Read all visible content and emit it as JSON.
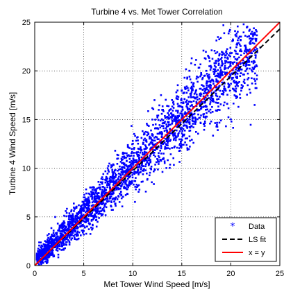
{
  "chart_data": {
    "type": "scatter",
    "title": "Turbine 4 vs. Met Tower Correlation",
    "xlabel": "Met Tower Wind Speed [m/s]",
    "ylabel": "Turbine 4 Wind Speed [m/s]",
    "xlim": [
      0,
      25
    ],
    "ylim": [
      0,
      25
    ],
    "xticks": [
      0,
      5,
      10,
      15,
      20,
      25
    ],
    "yticks": [
      0,
      5,
      10,
      15,
      20,
      25
    ],
    "grid": true,
    "grid_style": "dotted",
    "legend_position": "bottom-right",
    "series": [
      {
        "name": "Data",
        "kind": "scatter",
        "marker": "*",
        "color": "#0000ff",
        "sample_points": [
          [
            0.3,
            0.6
          ],
          [
            0.5,
            1.4
          ],
          [
            0.8,
            0.4
          ],
          [
            1.0,
            2.0
          ],
          [
            1.2,
            0.8
          ],
          [
            1.5,
            2.6
          ],
          [
            1.7,
            1.2
          ],
          [
            2.0,
            3.0
          ],
          [
            2.2,
            1.6
          ],
          [
            2.5,
            3.6
          ],
          [
            2.8,
            2.0
          ],
          [
            3.0,
            4.4
          ],
          [
            3.2,
            2.4
          ],
          [
            3.5,
            5.0
          ],
          [
            3.8,
            2.8
          ],
          [
            4.0,
            5.6
          ],
          [
            4.3,
            3.2
          ],
          [
            4.5,
            6.2
          ],
          [
            4.8,
            3.6
          ],
          [
            5.0,
            7.0
          ],
          [
            5.3,
            4.0
          ],
          [
            5.5,
            7.4
          ],
          [
            5.8,
            4.6
          ],
          [
            6.0,
            8.0
          ],
          [
            6.3,
            5.0
          ],
          [
            6.5,
            8.6
          ],
          [
            6.8,
            5.6
          ],
          [
            7.0,
            9.4
          ],
          [
            7.3,
            6.0
          ],
          [
            7.5,
            9.8
          ],
          [
            7.8,
            6.6
          ],
          [
            8.0,
            10.4
          ],
          [
            8.3,
            7.0
          ],
          [
            8.5,
            11.0
          ],
          [
            8.8,
            7.6
          ],
          [
            9.0,
            11.6
          ],
          [
            9.3,
            8.0
          ],
          [
            9.5,
            12.2
          ],
          [
            9.8,
            8.6
          ],
          [
            10.0,
            12.8
          ],
          [
            10.3,
            9.0
          ],
          [
            10.5,
            13.2
          ],
          [
            10.8,
            9.6
          ],
          [
            11.0,
            13.8
          ],
          [
            11.3,
            10.2
          ],
          [
            11.5,
            14.4
          ],
          [
            11.8,
            10.6
          ],
          [
            12.0,
            15.0
          ],
          [
            12.3,
            11.2
          ],
          [
            12.5,
            15.4
          ],
          [
            12.8,
            11.8
          ],
          [
            13.0,
            16.0
          ],
          [
            13.3,
            12.2
          ],
          [
            13.5,
            16.4
          ],
          [
            13.8,
            12.8
          ],
          [
            14.0,
            17.0
          ],
          [
            14.3,
            13.4
          ],
          [
            14.5,
            17.4
          ],
          [
            14.8,
            13.8
          ],
          [
            15.0,
            18.0
          ],
          [
            15.3,
            14.4
          ],
          [
            15.5,
            18.4
          ],
          [
            15.8,
            15.0
          ],
          [
            16.0,
            18.8
          ],
          [
            16.3,
            15.6
          ],
          [
            16.5,
            19.2
          ],
          [
            16.8,
            16.0
          ],
          [
            17.0,
            19.6
          ],
          [
            17.3,
            16.8
          ],
          [
            17.5,
            20.0
          ],
          [
            17.8,
            17.2
          ],
          [
            18.0,
            20.4
          ],
          [
            18.3,
            17.8
          ],
          [
            18.5,
            20.8
          ],
          [
            18.8,
            18.4
          ],
          [
            19.0,
            21.2
          ],
          [
            19.3,
            18.8
          ],
          [
            19.5,
            21.6
          ],
          [
            19.8,
            19.4
          ],
          [
            20.0,
            21.8
          ],
          [
            20.3,
            19.8
          ],
          [
            20.5,
            22.0
          ],
          [
            20.8,
            20.4
          ],
          [
            21.0,
            22.2
          ],
          [
            21.3,
            20.8
          ],
          [
            21.5,
            22.6
          ],
          [
            21.8,
            21.2
          ],
          [
            22.0,
            23.0
          ],
          [
            22.5,
            21.6
          ],
          [
            23.0,
            22.4
          ],
          [
            21.0,
            23.2
          ],
          [
            22.4,
            22.8
          ],
          [
            20.0,
            20.9
          ],
          [
            19.0,
            19.6
          ],
          [
            18.0,
            19.0
          ],
          [
            17.0,
            17.6
          ],
          [
            16.0,
            16.8
          ],
          [
            15.0,
            15.6
          ],
          [
            14.0,
            14.6
          ],
          [
            13.0,
            13.6
          ],
          [
            12.0,
            12.6
          ],
          [
            11.0,
            11.6
          ],
          [
            10.0,
            10.6
          ],
          [
            9.0,
            9.6
          ],
          [
            8.0,
            8.6
          ],
          [
            7.0,
            7.6
          ],
          [
            6.0,
            6.6
          ],
          [
            5.0,
            5.6
          ],
          [
            4.0,
            4.6
          ],
          [
            3.0,
            3.6
          ],
          [
            2.0,
            2.6
          ],
          [
            1.0,
            1.6
          ]
        ]
      },
      {
        "name": "LS fit",
        "kind": "line",
        "color": "#000000",
        "dash": "dashed",
        "x": [
          0,
          25
        ],
        "y": [
          0,
          24.3
        ]
      },
      {
        "name": "x = y",
        "kind": "line",
        "color": "#ff0000",
        "x": [
          0,
          25
        ],
        "y": [
          0,
          25
        ]
      }
    ]
  }
}
